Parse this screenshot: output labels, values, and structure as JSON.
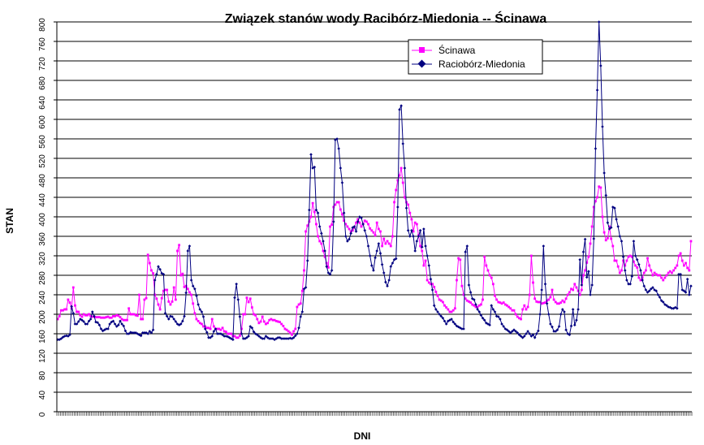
{
  "chart_data": {
    "type": "line",
    "title": "Związek stanów wody Racibórz-Miedonia -- Ścinawa",
    "xlabel": "DNI",
    "ylabel": "STAN",
    "ylim": [
      0,
      800
    ],
    "yticks": [
      0,
      40,
      80,
      120,
      160,
      200,
      240,
      280,
      320,
      360,
      400,
      440,
      480,
      520,
      560,
      600,
      640,
      680,
      720,
      760,
      800
    ],
    "grid": true,
    "legend_position": "top-right",
    "series": [
      {
        "name": "Ścinawa",
        "color": "#ff00ff",
        "marker": "square",
        "values": [
          190,
          196,
          208,
          208,
          210,
          210,
          230,
          224,
          212,
          255,
          218,
          205,
          205,
          198,
          195,
          200,
          198,
          198,
          200,
          196,
          195,
          195,
          194,
          194,
          194,
          193,
          193,
          193,
          194,
          195,
          193,
          193,
          196,
          196,
          198,
          197,
          194,
          190,
          188,
          188,
          188,
          212,
          200,
          200,
          200,
          198,
          197,
          240,
          190,
          190,
          230,
          233,
          322,
          305,
          290,
          284,
          240,
          232,
          220,
          210,
          233,
          248,
          250,
          250,
          226,
          220,
          226,
          255,
          230,
          330,
          342,
          280,
          283,
          256,
          258,
          252,
          245,
          240,
          222,
          202,
          190,
          186,
          182,
          180,
          175,
          175,
          172,
          172,
          170,
          190,
          175,
          170,
          170,
          170,
          168,
          172,
          165,
          164,
          160,
          160,
          160,
          155,
          155,
          152,
          152,
          156,
          170,
          200,
          200,
          234,
          225,
          232,
          214,
          200,
          198,
          190,
          182,
          185,
          195,
          185,
          180,
          182,
          188,
          190,
          188,
          188,
          186,
          185,
          184,
          180,
          176,
          170,
          168,
          165,
          162,
          158,
          165,
          170,
          215,
          220,
          222,
          248,
          290,
          370,
          382,
          390,
          400,
          428,
          410,
          385,
          360,
          350,
          345,
          330,
          318,
          305,
          296,
          380,
          384,
          420,
          425,
          430,
          430,
          415,
          405,
          392,
          385,
          380,
          375,
          370,
          372,
          378,
          388,
          395,
          388,
          380,
          385,
          392,
          390,
          385,
          376,
          372,
          368,
          362,
          388,
          375,
          370,
          340,
          355,
          345,
          350,
          345,
          340,
          360,
          430,
          455,
          475,
          485,
          500,
          470,
          440,
          430,
          425,
          408,
          395,
          370,
          388,
          385,
          362,
          340,
          330,
          300,
          310,
          270,
          265,
          262,
          262,
          256,
          246,
          238,
          230,
          228,
          225,
          218,
          214,
          210,
          205,
          205,
          208,
          212,
          270,
          315,
          312,
          258,
          240,
          232,
          228,
          226,
          224,
          220,
          218,
          215,
          215,
          218,
          220,
          230,
          318,
          300,
          290,
          280,
          275,
          262,
          238,
          230,
          225,
          224,
          222,
          224,
          220,
          218,
          215,
          212,
          208,
          208,
          200,
          195,
          192,
          190,
          210,
          218,
          210,
          215,
          240,
          320,
          265,
          232,
          226,
          225,
          225,
          222,
          223,
          224,
          228,
          230,
          235,
          250,
          230,
          225,
          222,
          222,
          224,
          228,
          225,
          232,
          240,
          245,
          252,
          250,
          262,
          255,
          248,
          240,
          250,
          280,
          290,
          306,
          318,
          345,
          380,
          420,
          432,
          440,
          462,
          460,
          400,
          368,
          352,
          356,
          380,
          355,
          340,
          310,
          310,
          298,
          285,
          290,
          310,
          300,
          310,
          318,
          320,
          318,
          308,
          300,
          296,
          275,
          270,
          275,
          285,
          290,
          315,
          300,
          290,
          280,
          285,
          282,
          280,
          280,
          275,
          270,
          275,
          280,
          285,
          288,
          285,
          290,
          295,
          300,
          320,
          325,
          310,
          300,
          305,
          295,
          290,
          350
        ]
      },
      {
        "name": "Raciobórz-Miedonia",
        "color": "#000080",
        "marker": "diamond",
        "values": [
          148,
          148,
          150,
          153,
          155,
          156,
          155,
          158,
          216,
          202,
          180,
          180,
          185,
          190,
          188,
          185,
          180,
          180,
          186,
          190,
          205,
          196,
          184,
          183,
          178,
          170,
          166,
          168,
          170,
          170,
          180,
          184,
          186,
          180,
          175,
          178,
          186,
          180,
          176,
          166,
          160,
          160,
          163,
          162,
          162,
          162,
          160,
          158,
          156,
          162,
          162,
          162,
          160,
          165,
          162,
          168,
          270,
          282,
          298,
          292,
          284,
          282,
          202,
          196,
          190,
          196,
          195,
          190,
          185,
          180,
          178,
          180,
          186,
          196,
          244,
          330,
          340,
          270,
          258,
          252,
          238,
          220,
          210,
          205,
          195,
          170,
          163,
          152,
          152,
          155,
          165,
          170,
          160,
          160,
          160,
          158,
          155,
          155,
          154,
          152,
          150,
          148,
          234,
          262,
          230,
          195,
          160,
          150,
          150,
          152,
          155,
          175,
          172,
          164,
          160,
          158,
          155,
          152,
          150,
          150,
          155,
          152,
          150,
          150,
          150,
          148,
          150,
          152,
          152,
          150,
          150,
          150,
          150,
          150,
          151,
          150,
          152,
          156,
          160,
          172,
          195,
          205,
          252,
          255,
          310,
          414,
          528,
          500,
          502,
          414,
          408,
          380,
          366,
          350,
          330,
          298,
          285,
          282,
          290,
          390,
          558,
          560,
          540,
          500,
          470,
          408,
          360,
          350,
          354,
          366,
          378,
          380,
          370,
          390,
          400,
          398,
          385,
          372,
          360,
          340,
          320,
          300,
          290,
          316,
          330,
          345,
          325,
          302,
          285,
          266,
          258,
          270,
          298,
          305,
          312,
          314,
          420,
          620,
          628,
          550,
          500,
          418,
          372,
          360,
          372,
          360,
          330,
          350,
          360,
          372,
          338,
          375,
          340,
          320,
          300,
          272,
          250,
          218,
          210,
          205,
          200,
          196,
          192,
          186,
          180,
          186,
          188,
          190,
          184,
          180,
          176,
          174,
          172,
          170,
          170,
          328,
          340,
          260,
          245,
          232,
          230,
          220,
          210,
          205,
          198,
          192,
          188,
          182,
          180,
          178,
          218,
          210,
          205,
          196,
          195,
          190,
          180,
          175,
          170,
          168,
          165,
          162,
          165,
          168,
          165,
          162,
          158,
          155,
          152,
          155,
          160,
          165,
          160,
          155,
          158,
          152,
          160,
          166,
          200,
          250,
          340,
          262,
          222,
          200,
          180,
          174,
          165,
          165,
          168,
          175,
          200,
          210,
          205,
          168,
          160,
          158,
          176,
          210,
          178,
          188,
          210,
          312,
          260,
          328,
          354,
          276,
          288,
          240,
          260,
          355,
          540,
          660,
          800,
          710,
          585,
          490,
          444,
          388,
          375,
          378,
          420,
          418,
          395,
          380,
          360,
          350,
          318,
          290,
          270,
          262,
          262,
          278,
          350,
          320,
          312,
          302,
          290,
          270,
          258,
          250,
          245,
          248,
          252,
          255,
          250,
          248,
          240,
          235,
          228,
          225,
          220,
          218,
          215,
          214,
          212,
          212,
          214,
          212,
          282,
          282,
          250,
          248,
          245,
          272,
          240,
          258
        ]
      }
    ]
  }
}
